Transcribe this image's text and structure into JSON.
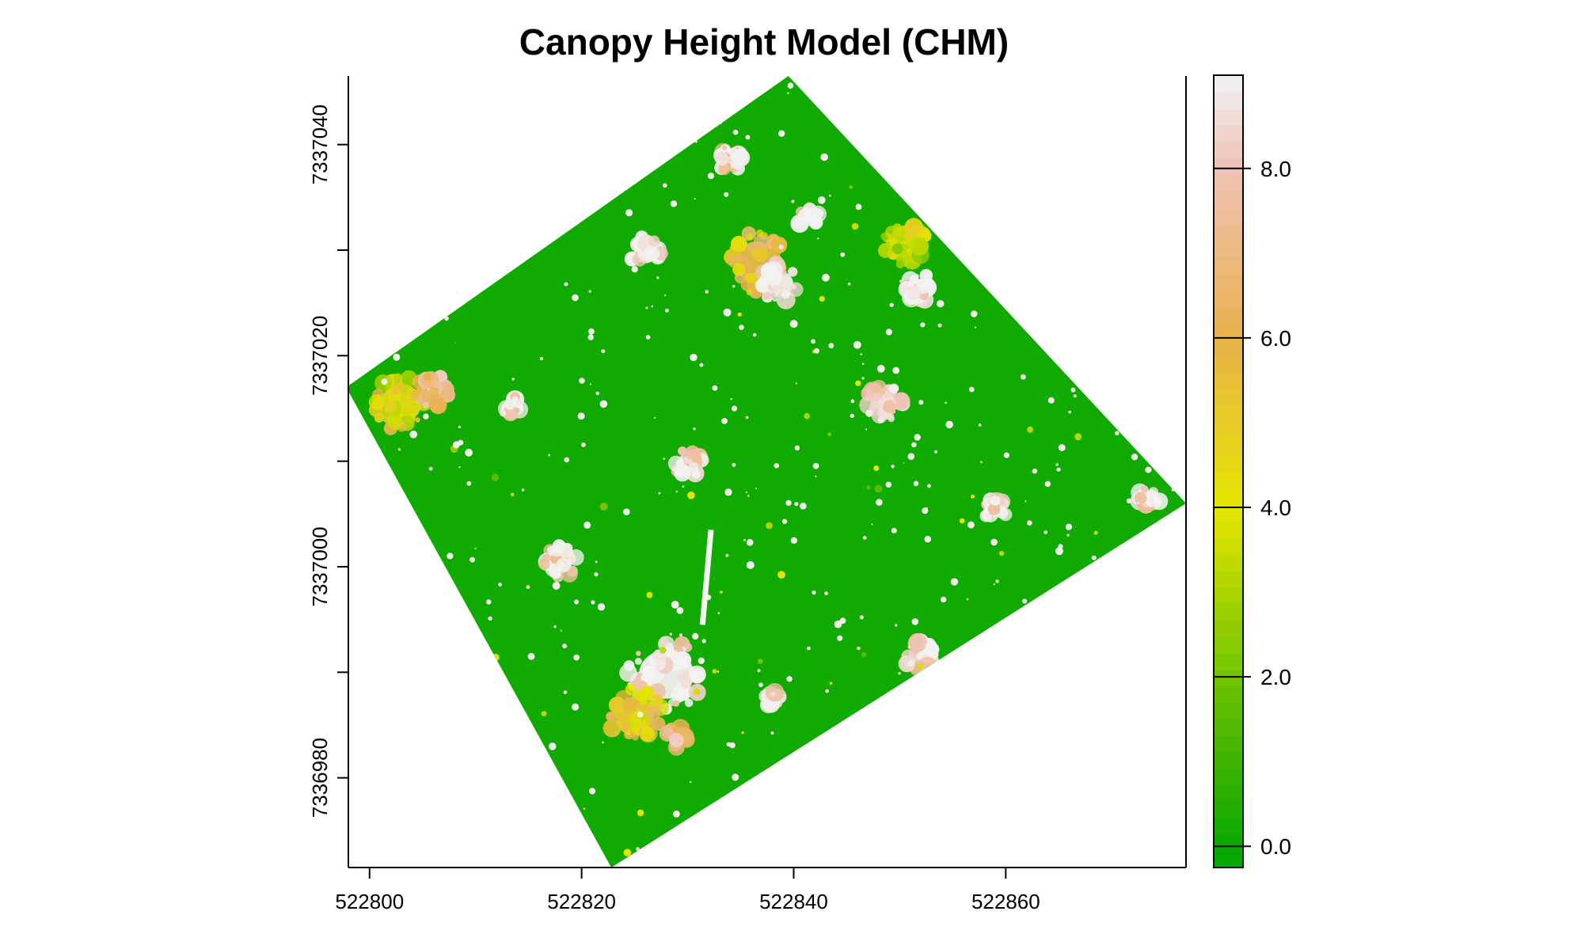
{
  "chart_data": {
    "type": "heatmap",
    "title": "Canopy Height Model (CHM)",
    "xlabel": "",
    "ylabel": "",
    "x_ticks": [
      "522800",
      "522820",
      "522840",
      "522860"
    ],
    "x_tick_values": [
      522800,
      522820,
      522840,
      522860
    ],
    "y_ticks": [
      "7336980",
      "7337000",
      "7337020",
      "7337040"
    ],
    "y_tick_values": [
      7336980,
      7337000,
      7337020,
      7337040
    ],
    "y_minor_tick_values": [
      7336990,
      7337010,
      7337030
    ],
    "xlim": [
      522798,
      522877
    ],
    "ylim": [
      7336971.5,
      7337046.5
    ],
    "value_range": [
      0,
      9.1
    ],
    "footprint_corners": [
      [
        522797.8,
        7337017
      ],
      [
        522839.5,
        7337046.5
      ],
      [
        522877,
        7337006
      ],
      [
        522822.8,
        7336971.5
      ]
    ],
    "background_value": 0.1,
    "clusters": [
      {
        "x": 522803,
        "y": 7337015.5,
        "rx": 2.7,
        "ry": 2.6,
        "value": 4.5
      },
      {
        "x": 522806,
        "y": 7337016.5,
        "rx": 1.6,
        "ry": 1.7,
        "value": 7.0
      },
      {
        "x": 522826,
        "y": 7337029.8,
        "rx": 1.5,
        "ry": 1.5,
        "value": 9.0
      },
      {
        "x": 522836.5,
        "y": 7337028.8,
        "rx": 2.7,
        "ry": 2.9,
        "value": 5.8
      },
      {
        "x": 522838.5,
        "y": 7337026.8,
        "rx": 2.1,
        "ry": 1.8,
        "value": 9.0
      },
      {
        "x": 522834,
        "y": 7337038.5,
        "rx": 1.1,
        "ry": 1.4,
        "value": 8.5
      },
      {
        "x": 522841.5,
        "y": 7337033,
        "rx": 1.1,
        "ry": 1.0,
        "value": 9.0
      },
      {
        "x": 522850.5,
        "y": 7337030.8,
        "rx": 2.1,
        "ry": 2.2,
        "value": 3.5
      },
      {
        "x": 522852,
        "y": 7337026.3,
        "rx": 1.4,
        "ry": 1.4,
        "value": 9.0
      },
      {
        "x": 522848.5,
        "y": 7337015.5,
        "rx": 1.8,
        "ry": 1.8,
        "value": 9.0
      },
      {
        "x": 522830,
        "y": 7337009.8,
        "rx": 1.5,
        "ry": 1.3,
        "value": 8.5
      },
      {
        "x": 522818,
        "y": 7337000.5,
        "rx": 1.6,
        "ry": 1.6,
        "value": 8.0
      },
      {
        "x": 522828,
        "y": 7336989.8,
        "rx": 3.7,
        "ry": 3.3,
        "value": 9.0
      },
      {
        "x": 522825,
        "y": 7336985.8,
        "rx": 2.6,
        "ry": 2.6,
        "value": 5.0
      },
      {
        "x": 522829,
        "y": 7336983.8,
        "rx": 1.2,
        "ry": 1.1,
        "value": 7.2
      },
      {
        "x": 522852,
        "y": 7336991.5,
        "rx": 1.6,
        "ry": 1.5,
        "value": 8.5
      },
      {
        "x": 522859,
        "y": 7337005.5,
        "rx": 1.2,
        "ry": 1.0,
        "value": 9.0
      },
      {
        "x": 522873.5,
        "y": 7337006.5,
        "rx": 1.2,
        "ry": 1.0,
        "value": 9.0
      },
      {
        "x": 522813.5,
        "y": 7337015.3,
        "rx": 0.8,
        "ry": 0.8,
        "value": 9.0
      },
      {
        "x": 522838,
        "y": 7336987.5,
        "rx": 0.8,
        "ry": 0.8,
        "value": 9.0
      }
    ],
    "colorbar": {
      "ticks": [
        "0.0",
        "2.0",
        "4.0",
        "6.0",
        "8.0"
      ],
      "tick_values": [
        0,
        2,
        4,
        6,
        8
      ],
      "min": -0.25,
      "max": 9.1,
      "stops": [
        {
          "v": -0.25,
          "color": "#00a600"
        },
        {
          "v": 1.0,
          "color": "#3cb300"
        },
        {
          "v": 2.5,
          "color": "#8ccc00"
        },
        {
          "v": 4.0,
          "color": "#e6e600"
        },
        {
          "v": 6.0,
          "color": "#e8b24c"
        },
        {
          "v": 8.0,
          "color": "#efc2b5"
        },
        {
          "v": 9.1,
          "color": "#f2f2f2"
        }
      ]
    }
  }
}
